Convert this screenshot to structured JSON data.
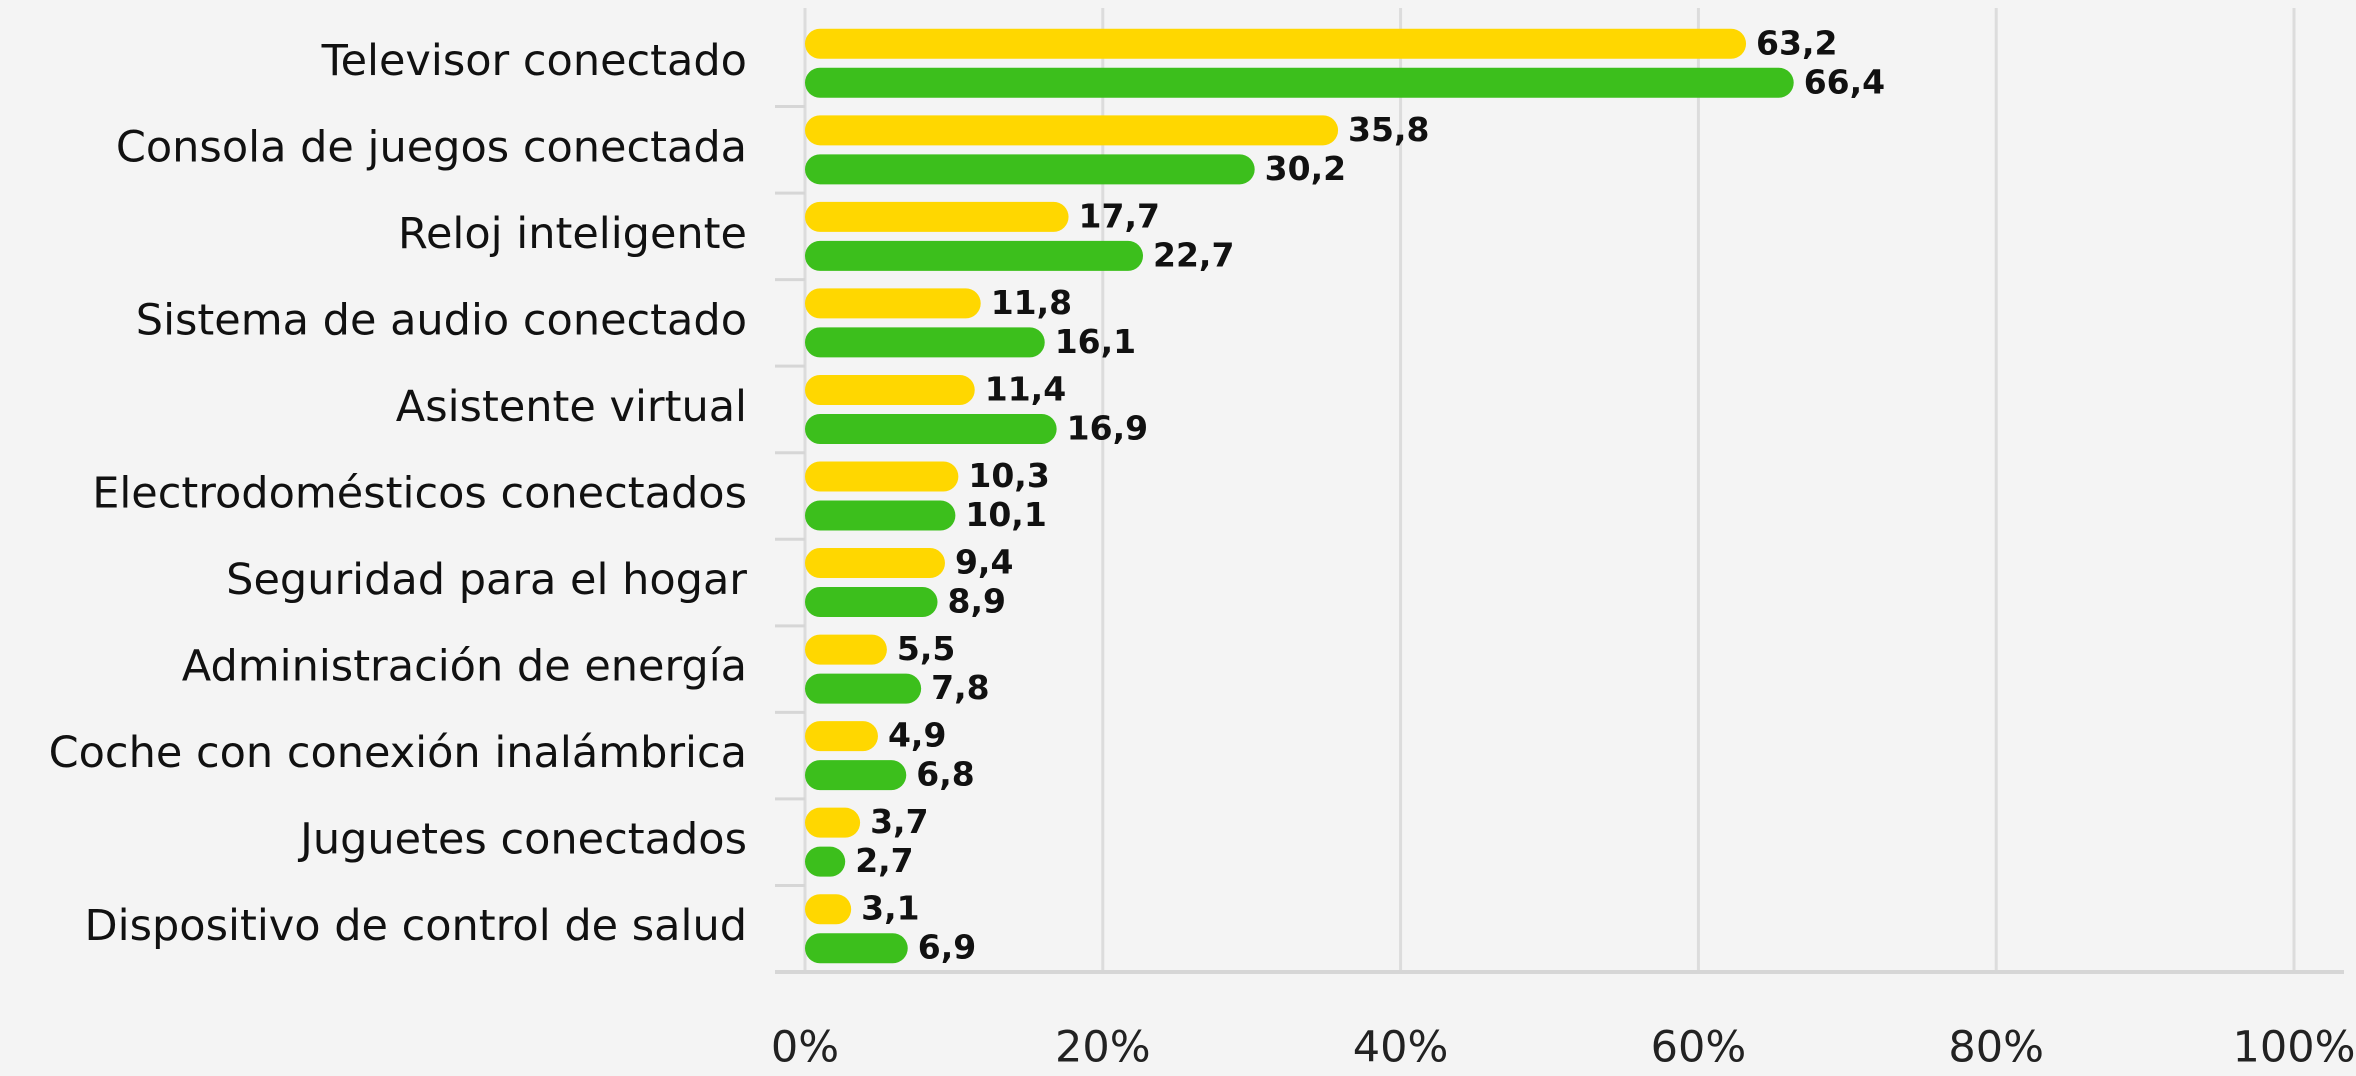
{
  "chart_data": {
    "type": "hbar",
    "categories": [
      "Televisor conectado",
      "Consola de juegos conectada",
      "Reloj inteligente",
      "Sistema de audio conectado",
      "Asistente virtual",
      "Electrodomésticos conectados",
      "Seguridad para el hogar",
      "Administración de energía",
      "Coche con conexión inalámbrica",
      "Juguetes conectados",
      "Dispositivo de control de salud"
    ],
    "series": [
      {
        "color": "#ffd700",
        "values": [
          63.2,
          35.8,
          17.7,
          11.8,
          11.4,
          10.3,
          9.4,
          5.5,
          4.9,
          3.7,
          3.1
        ],
        "value_labels": [
          "63,2",
          "35,8",
          "17,7",
          "11,8",
          "11,4",
          "10,3",
          "9,4",
          "5,5",
          "4,9",
          "3,7",
          "3,1"
        ]
      },
      {
        "color": "#3cbf1c",
        "values": [
          66.4,
          30.2,
          22.7,
          16.1,
          16.9,
          10.1,
          8.9,
          7.8,
          6.8,
          2.7,
          6.9
        ],
        "value_labels": [
          "66,4",
          "30,2",
          "22,7",
          "16,1",
          "16,9",
          "10,1",
          "8,9",
          "7,8",
          "6,8",
          "2,7",
          "6,9"
        ]
      }
    ],
    "xlim": [
      0,
      100
    ],
    "xticks": [
      {
        "value": 0,
        "label": "0%"
      },
      {
        "value": 20,
        "label": "20%"
      },
      {
        "value": 40,
        "label": "40%"
      },
      {
        "value": 60,
        "label": "60%"
      },
      {
        "value": 80,
        "label": "80%"
      },
      {
        "value": 100,
        "label": "100%"
      }
    ],
    "grid": true
  }
}
